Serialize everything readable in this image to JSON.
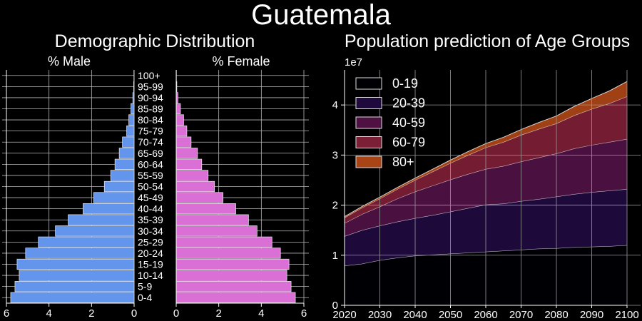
{
  "title": "Guatemala",
  "pyramid": {
    "title": "Demographic Distribution",
    "male_label": "% Male",
    "female_label": "% Female",
    "x_ticks_male": [
      "6",
      "4",
      "2",
      "0"
    ],
    "x_ticks_female": [
      "0",
      "2",
      "4",
      "6"
    ],
    "male_color": "#6495ed",
    "female_color": "#da70d6"
  },
  "area": {
    "title": "Population prediction of Age Groups",
    "y_multiplier": "1e7",
    "y_ticks": [
      "0",
      "1",
      "2",
      "3",
      "4"
    ],
    "x_ticks": [
      "2020",
      "2030",
      "2040",
      "2050",
      "2060",
      "2070",
      "2080",
      "2090",
      "2100"
    ]
  },
  "chart_data": [
    {
      "type": "bar",
      "orientation": "horizontal",
      "title": "Demographic Distribution",
      "categories": [
        "0-4",
        "5-9",
        "10-14",
        "15-19",
        "20-24",
        "25-29",
        "30-34",
        "35-39",
        "40-44",
        "45-49",
        "50-54",
        "55-59",
        "60-64",
        "65-69",
        "70-74",
        "75-79",
        "80-84",
        "85-89",
        "90-94",
        "95-99",
        "100+"
      ],
      "series": [
        {
          "name": "% Male",
          "values": [
            5.8,
            5.6,
            5.4,
            5.5,
            5.1,
            4.5,
            3.7,
            3.1,
            2.4,
            1.9,
            1.4,
            1.1,
            0.9,
            0.7,
            0.55,
            0.35,
            0.25,
            0.15,
            0.06,
            0.02,
            0.01
          ]
        },
        {
          "name": "% Female",
          "values": [
            5.6,
            5.4,
            5.2,
            5.3,
            4.9,
            4.5,
            3.8,
            3.4,
            2.8,
            2.2,
            1.8,
            1.5,
            1.2,
            1.0,
            0.7,
            0.5,
            0.35,
            0.2,
            0.08,
            0.03,
            0.01
          ]
        }
      ],
      "xlim": [
        0,
        6
      ]
    },
    {
      "type": "area",
      "stacked": true,
      "title": "Population prediction of Age Groups",
      "x": [
        2020,
        2025,
        2030,
        2035,
        2040,
        2045,
        2050,
        2055,
        2060,
        2065,
        2070,
        2075,
        2080,
        2085,
        2090,
        2095,
        2100
      ],
      "ylim": [
        0,
        47000000
      ],
      "legend": "top-left",
      "series": [
        {
          "name": "0-19",
          "color": "#000004",
          "values": [
            7900000,
            8300000,
            9000000,
            9500000,
            9900000,
            10100000,
            10300000,
            10500000,
            10700000,
            10900000,
            11100000,
            11300000,
            11400000,
            11600000,
            11700000,
            11800000,
            12000000
          ]
        },
        {
          "name": "20-39",
          "color": "#1f0a3d",
          "values": [
            5900000,
            6700000,
            6900000,
            7200000,
            7500000,
            7900000,
            8400000,
            8900000,
            9400000,
            9400000,
            9700000,
            9900000,
            10300000,
            10600000,
            10900000,
            11100000,
            11200000
          ]
        },
        {
          "name": "40-59",
          "color": "#4e1142",
          "values": [
            2600000,
            3200000,
            3800000,
            4600000,
            5300000,
            5900000,
            6400000,
            6800000,
            7100000,
            7500000,
            7900000,
            8300000,
            8600000,
            9100000,
            9400000,
            9700000,
            10000000
          ]
        },
        {
          "name": "60-79",
          "color": "#7a1f35",
          "values": [
            1100000,
            1300000,
            1600000,
            1900000,
            2300000,
            2800000,
            3300000,
            3800000,
            4300000,
            4800000,
            5300000,
            5700000,
            6000000,
            6600000,
            7200000,
            7700000,
            8500000
          ]
        },
        {
          "name": "80+",
          "color": "#a84416",
          "values": [
            200000,
            250000,
            300000,
            350000,
            400000,
            500000,
            600000,
            700000,
            800000,
            950000,
            1100000,
            1300000,
            1500000,
            1800000,
            2100000,
            2500000,
            3000000
          ]
        }
      ]
    }
  ]
}
